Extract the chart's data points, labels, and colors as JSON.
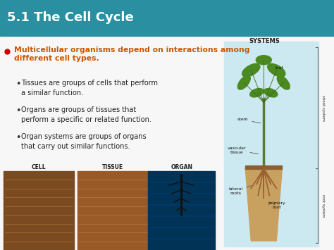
{
  "title": "5.1 The Cell Cycle",
  "title_bg_color": "#2a8fa0",
  "title_text_color": "#ffffff",
  "title_fontsize": 13,
  "main_text_color": "#cc5500",
  "main_text_line1": "Multicellular organisms depend on interactions among",
  "main_text_line2": "different cell types.",
  "bullet_points": [
    "Tissues are groups of cells that perform\na similar function.",
    "Organs are groups of tissues that\nperform a specific or related function.",
    "Organ systems are groups of organs\nthat carry out similar functions."
  ],
  "systems_label": "SYSTEMS",
  "shoot_system_label": "shoot system",
  "root_system_label": "root system",
  "cell_label": "CELL",
  "tissue_label": "TISSUE",
  "organ_label": "ORGAN",
  "bg_color": "#ffffff",
  "diagram_bg": "#cce8f0",
  "red_dot_color": "#cc0000",
  "title_bar_height": 0.145
}
